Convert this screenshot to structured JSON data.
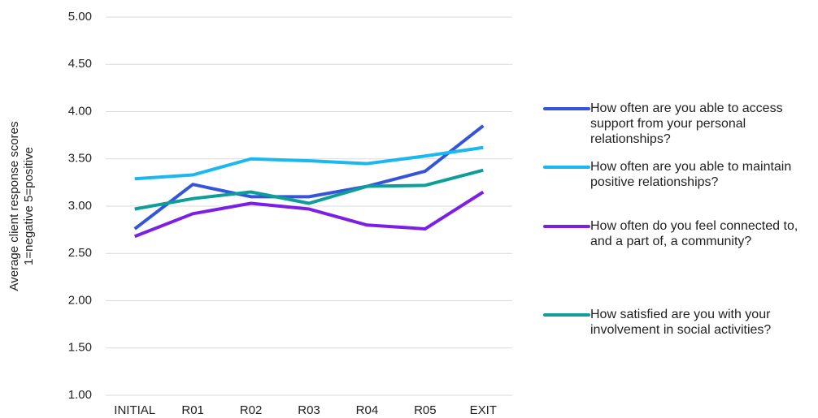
{
  "chart_data": {
    "type": "line",
    "ylabel": [
      "Average client response scores",
      "1=negative 5=positive"
    ],
    "categories": [
      "INITIAL",
      "R01",
      "R02",
      "R03",
      "R04",
      "R05",
      "EXIT"
    ],
    "series": [
      {
        "name": "How often are you able to access support from your personal relationships?",
        "color": "#3455db",
        "values": [
          2.76,
          3.23,
          3.1,
          3.1,
          3.21,
          3.37,
          3.85
        ]
      },
      {
        "name": "How often are you able to maintain positive relationships?",
        "color": "#1ab8f0",
        "values": [
          3.29,
          3.33,
          3.5,
          3.48,
          3.45,
          3.53,
          3.62
        ]
      },
      {
        "name": "How often do you feel connected to, and a part of, a community?",
        "color": "#7b1fe8",
        "values": [
          2.68,
          2.92,
          3.03,
          2.97,
          2.8,
          2.76,
          3.15
        ]
      },
      {
        "name": "How satisfied are you with your involvement in social activities?",
        "color": "#0e9e9a",
        "values": [
          2.97,
          3.08,
          3.15,
          3.03,
          3.21,
          3.22,
          3.38
        ]
      }
    ],
    "ylim": [
      1,
      5
    ],
    "yticks": [
      {
        "value": 1,
        "label": "1.00"
      },
      {
        "value": 1.5,
        "label": "1.50"
      },
      {
        "value": 2,
        "label": "2.00"
      },
      {
        "value": 2.5,
        "label": "2.50"
      },
      {
        "value": 3,
        "label": "3.00"
      },
      {
        "value": 3.5,
        "label": "3.50"
      },
      {
        "value": 4,
        "label": "4.00"
      },
      {
        "value": 4.5,
        "label": "4.50"
      },
      {
        "value": 5,
        "label": "5.00"
      }
    ],
    "grid": true,
    "legend": "right"
  }
}
